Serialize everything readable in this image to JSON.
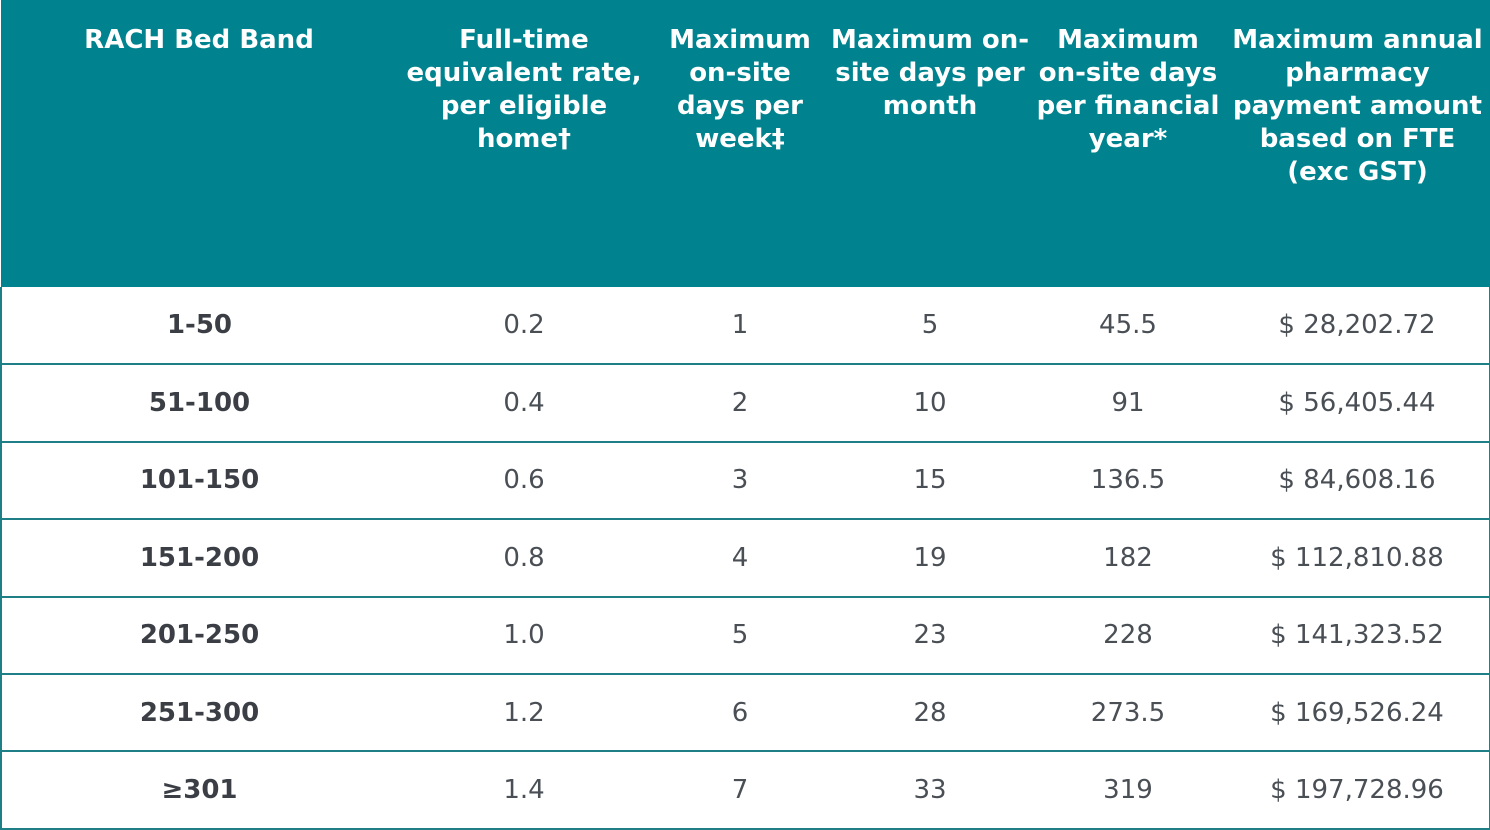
{
  "table": {
    "headers": [
      "RACH Bed Band",
      "Full-time equivalent rate, per eligible home†",
      "Maximum on-site days per week‡",
      "Maximum on-site days per month",
      "Maximum on-site days per financial year*",
      "Maximum annual pharmacy payment amount based on FTE (exc GST)"
    ],
    "rows": [
      [
        "1-50",
        "0.2",
        "1",
        "5",
        "45.5",
        "$ 28,202.72"
      ],
      [
        "51-100",
        "0.4",
        "2",
        "10",
        "91",
        "$ 56,405.44"
      ],
      [
        "101-150",
        "0.6",
        "3",
        "15",
        "136.5",
        "$ 84,608.16"
      ],
      [
        "151-200",
        "0.8",
        "4",
        "19",
        "182",
        "$ 112,810.88"
      ],
      [
        "201-250",
        "1.0",
        "5",
        "23",
        "228",
        "$ 141,323.52"
      ],
      [
        "251-300",
        "1.2",
        "6",
        "28",
        "273.5",
        "$ 169,526.24"
      ],
      [
        "≥301",
        "1.4",
        "7",
        "33",
        "319",
        "$ 197,728.96"
      ]
    ]
  },
  "colors": {
    "header_background": "#00838e",
    "header_text": "#ffffff",
    "row_border": "#1f7f87",
    "body_text": "#4a4f55"
  }
}
